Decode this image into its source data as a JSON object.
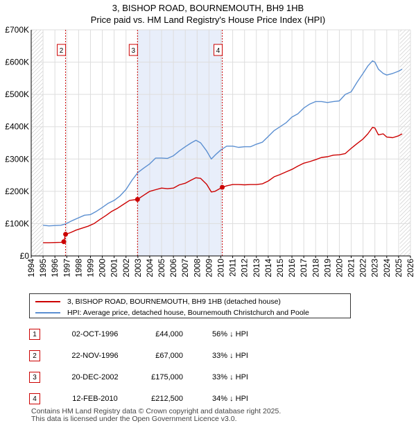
{
  "chart_data": {
    "type": "line",
    "title": "3, BISHOP ROAD, BOURNEMOUTH, BH9 1HB",
    "subtitle": "Price paid vs. HM Land Registry's House Price Index (HPI)",
    "xlabel": "",
    "ylabel": "",
    "xlim": [
      1994,
      2026
    ],
    "ylim": [
      0,
      700000
    ],
    "y_ticks": [
      0,
      100000,
      200000,
      300000,
      400000,
      500000,
      600000,
      700000
    ],
    "y_tick_labels": [
      "£0",
      "£100K",
      "£200K",
      "£300K",
      "£400K",
      "£500K",
      "£600K",
      "£700K"
    ],
    "x_ticks": [
      1994,
      1995,
      1996,
      1997,
      1998,
      1999,
      2000,
      2001,
      2002,
      2003,
      2004,
      2005,
      2006,
      2007,
      2008,
      2009,
      2010,
      2011,
      2012,
      2013,
      2014,
      2015,
      2016,
      2017,
      2018,
      2019,
      2020,
      2021,
      2022,
      2023,
      2024,
      2025,
      2026
    ],
    "x_tick_labels": [
      "1994",
      "1995",
      "1996",
      "1997",
      "1998",
      "1999",
      "2000",
      "2001",
      "2002",
      "2003",
      "2004",
      "2005",
      "2006",
      "2007",
      "2008",
      "2009",
      "2010",
      "2011",
      "2012",
      "2013",
      "2014",
      "2015",
      "2016",
      "2017",
      "2018",
      "2019",
      "2020",
      "2021",
      "2022",
      "2023",
      "2024",
      "2025",
      "2026"
    ],
    "grid": true,
    "shaded_period": [
      2002.97,
      2010.12
    ],
    "hatched_regions": [
      [
        1994,
        1995
      ],
      [
        2025.1,
        2026
      ]
    ],
    "series": [
      {
        "name": "3, BISHOP ROAD, BOURNEMOUTH, BH9 1HB (detached house)",
        "color": "#cc0000",
        "x": [
          1995.0,
          1995.5,
          1996.0,
          1996.5,
          1996.75,
          1996.9,
          1997.3,
          1997.8,
          1998.3,
          1998.8,
          1999.3,
          1999.8,
          2000.3,
          2000.8,
          2001.3,
          2001.8,
          2002.3,
          2002.97,
          2003.5,
          2004.0,
          2004.5,
          2005.0,
          2005.5,
          2006.0,
          2006.5,
          2007.0,
          2007.5,
          2007.9,
          2008.3,
          2008.8,
          2009.2,
          2009.5,
          2010.12,
          2010.5,
          2011.0,
          2011.5,
          2012.0,
          2012.5,
          2013.0,
          2013.5,
          2014.0,
          2014.5,
          2015.0,
          2015.5,
          2016.0,
          2016.5,
          2017.0,
          2017.5,
          2018.0,
          2018.5,
          2019.0,
          2019.5,
          2020.0,
          2020.5,
          2021.0,
          2021.5,
          2022.0,
          2022.4,
          2022.8,
          2023.0,
          2023.3,
          2023.7,
          2024.0,
          2024.5,
          2025.0,
          2025.3
        ],
        "values": [
          41000,
          41000,
          41500,
          42000,
          44000,
          67000,
          72000,
          80000,
          86000,
          92000,
          100000,
          113000,
          125000,
          138000,
          148000,
          160000,
          172000,
          175000,
          188000,
          200000,
          205000,
          210000,
          208000,
          210000,
          220000,
          225000,
          235000,
          242000,
          240000,
          222000,
          198000,
          200000,
          212500,
          217000,
          221000,
          221000,
          220000,
          221000,
          221000,
          223000,
          232000,
          245000,
          252000,
          260000,
          268000,
          278000,
          287000,
          292000,
          298000,
          305000,
          307000,
          312000,
          313000,
          317000,
          333000,
          348000,
          362000,
          378000,
          398000,
          396000,
          375000,
          378000,
          368000,
          366000,
          372000,
          378000
        ]
      },
      {
        "name": "HPI: Average price, detached house, Bournemouth Christchurch and Poole",
        "color": "#5b8fd1",
        "x": [
          1995.0,
          1995.5,
          1996.0,
          1996.5,
          1996.9,
          1997.5,
          1998.0,
          1998.5,
          1999.0,
          1999.5,
          2000.0,
          2000.5,
          2001.0,
          2001.5,
          2002.0,
          2002.5,
          2003.0,
          2003.5,
          2004.0,
          2004.5,
          2005.0,
          2005.5,
          2006.0,
          2006.5,
          2007.0,
          2007.5,
          2007.9,
          2008.3,
          2008.8,
          2009.2,
          2009.6,
          2010.0,
          2010.5,
          2011.0,
          2011.5,
          2012.0,
          2012.5,
          2013.0,
          2013.5,
          2014.0,
          2014.5,
          2015.0,
          2015.5,
          2016.0,
          2016.5,
          2017.0,
          2017.5,
          2018.0,
          2018.5,
          2019.0,
          2019.5,
          2020.0,
          2020.5,
          2021.0,
          2021.5,
          2022.0,
          2022.4,
          2022.8,
          2023.0,
          2023.3,
          2023.7,
          2024.0,
          2024.5,
          2025.0,
          2025.3
        ],
        "values": [
          95000,
          93000,
          94000,
          95000,
          99000,
          110000,
          118000,
          126000,
          128000,
          138000,
          150000,
          163000,
          172000,
          186000,
          206000,
          234000,
          258000,
          272000,
          285000,
          303000,
          303000,
          302000,
          310000,
          325000,
          338000,
          350000,
          358000,
          350000,
          325000,
          300000,
          315000,
          328000,
          340000,
          340000,
          336000,
          338000,
          338000,
          346000,
          352000,
          370000,
          388000,
          400000,
          412000,
          430000,
          440000,
          458000,
          470000,
          478000,
          478000,
          475000,
          478000,
          480000,
          500000,
          508000,
          538000,
          565000,
          588000,
          604000,
          600000,
          578000,
          565000,
          560000,
          565000,
          572000,
          578000
        ]
      }
    ],
    "markers": [
      {
        "label": "1",
        "x": 1996.75,
        "value": 44000,
        "flag": false
      },
      {
        "label": "2",
        "x": 1996.9,
        "value": 67000,
        "flag": true
      },
      {
        "label": "3",
        "x": 2002.97,
        "value": 175000,
        "flag": true
      },
      {
        "label": "4",
        "x": 2010.12,
        "value": 212500,
        "flag": true
      }
    ]
  },
  "legend": {
    "items": [
      {
        "label": "3, BISHOP ROAD, BOURNEMOUTH, BH9 1HB (detached house)",
        "color": "#cc0000"
      },
      {
        "label": "HPI: Average price, detached house, Bournemouth Christchurch and Poole",
        "color": "#5b8fd1"
      }
    ]
  },
  "transactions": [
    {
      "num": "1",
      "date": "02-OCT-1996",
      "price": "£44,000",
      "hpi": "56% ↓ HPI"
    },
    {
      "num": "2",
      "date": "22-NOV-1996",
      "price": "£67,000",
      "hpi": "33% ↓ HPI"
    },
    {
      "num": "3",
      "date": "20-DEC-2002",
      "price": "£175,000",
      "hpi": "33% ↓ HPI"
    },
    {
      "num": "4",
      "date": "12-FEB-2010",
      "price": "£212,500",
      "hpi": "34% ↓ HPI"
    }
  ],
  "footer": {
    "line1": "Contains HM Land Registry data © Crown copyright and database right 2025.",
    "line2": "This data is licensed under the Open Government Licence v3.0."
  },
  "colors": {
    "price_line": "#cc0000",
    "hpi_line": "#5b8fd1",
    "shade": "#e8eefa",
    "marker_line": "#cc0000",
    "grid": "#dddddd"
  }
}
